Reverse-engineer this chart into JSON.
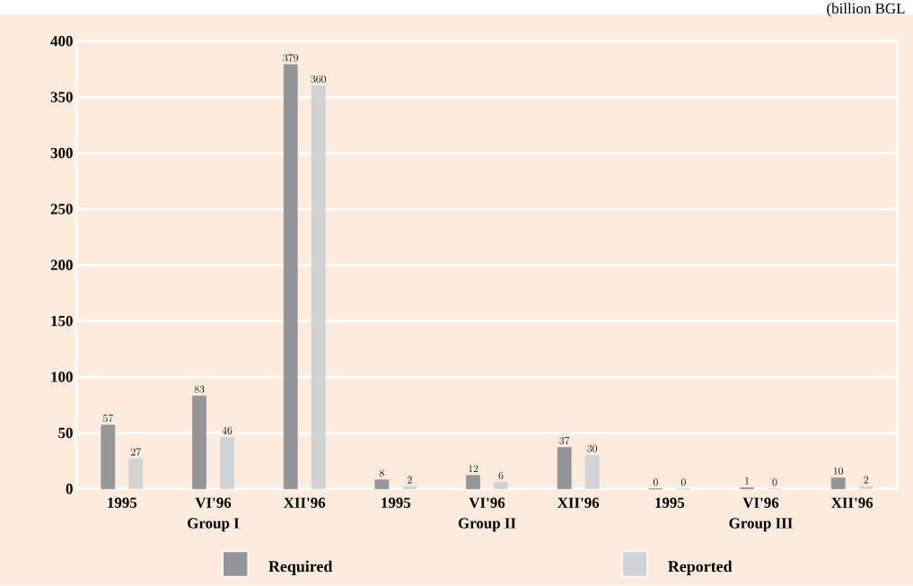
{
  "chart_data": {
    "type": "bar",
    "subtitle": "(billion BGL",
    "categories": [
      "1995",
      "VI'96",
      "XII'96",
      "1995",
      "VI'96",
      "XII'96",
      "1995",
      "VI'96",
      "XII'96"
    ],
    "series": [
      {
        "name": "Required",
        "color": "#949599",
        "values": [
          57,
          83,
          379,
          8,
          12,
          37,
          0,
          1,
          10
        ]
      },
      {
        "name": "Reported",
        "color": "#d1d2d4",
        "values": [
          27,
          46,
          360,
          2,
          6,
          30,
          0,
          0,
          2
        ]
      }
    ],
    "annotations": [
      "Group I",
      "Group II",
      "Group III"
    ],
    "ylim": [
      0,
      400
    ],
    "yticks": [
      0,
      50,
      100,
      150,
      200,
      250,
      300,
      350,
      400
    ],
    "grid": "y",
    "legend": "bottom",
    "data_labels": true
  }
}
